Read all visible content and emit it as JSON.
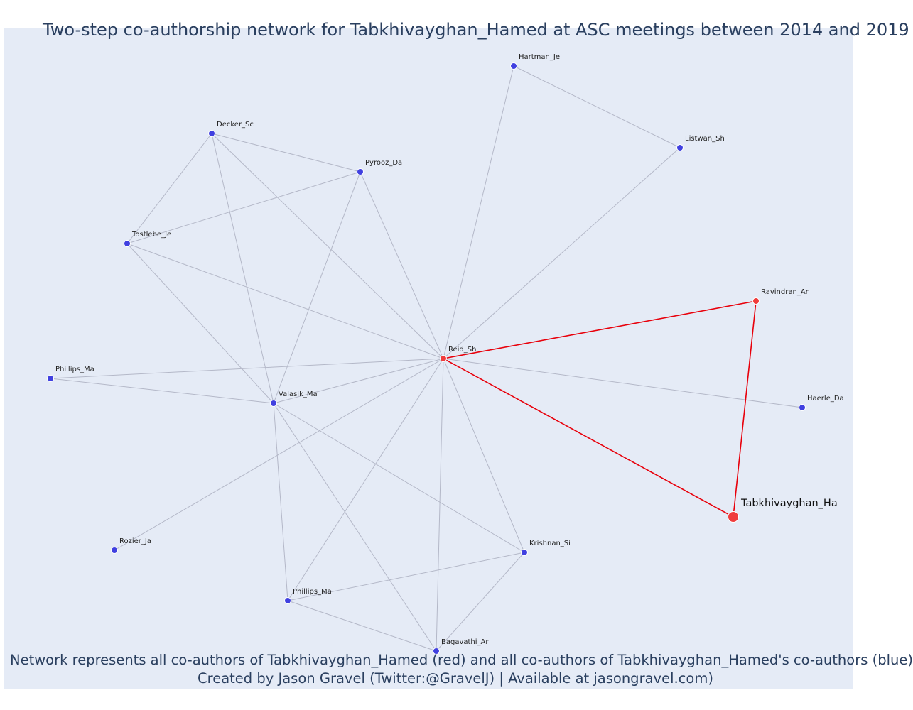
{
  "title": "Two-step co-authorship network for Tabkhivayghan_Hamed at ASC meetings between 2014 and 2019",
  "caption_line1": "Network represents all co-authors of Tabkhivayghan_Hamed (red) and all co-authors of Tabkhivayghan_Hamed's co-authors (blue)",
  "caption_line2": "Created by Jason Gravel (Twitter:@GravelJ) | Available at jasongravel.com)",
  "colors": {
    "background": "#e5ebf6",
    "direct": "#f03c3c",
    "indirect": "#4040e0",
    "edge_direct": "#e8000b",
    "edge_indirect": "#b4b8c8"
  },
  "nodes": [
    {
      "id": "hartman",
      "label": "Hartman_Je",
      "group": "indirect"
    },
    {
      "id": "listwan",
      "label": "Listwan_Sh",
      "group": "indirect"
    },
    {
      "id": "decker",
      "label": "Decker_Sc",
      "group": "indirect"
    },
    {
      "id": "pyrooz",
      "label": "Pyrooz_Da",
      "group": "indirect"
    },
    {
      "id": "tostlebe",
      "label": "Tostlebe_Je",
      "group": "indirect"
    },
    {
      "id": "ravindran",
      "label": "Ravindran_Ar",
      "group": "direct"
    },
    {
      "id": "reid",
      "label": "Reid_Sh",
      "group": "direct"
    },
    {
      "id": "phillips1",
      "label": "Phillips_Ma",
      "group": "indirect"
    },
    {
      "id": "valasik",
      "label": "Valasik_Ma",
      "group": "indirect"
    },
    {
      "id": "haerle",
      "label": "Haerle_Da",
      "group": "indirect"
    },
    {
      "id": "tabkhi",
      "label": "Tabkhivayghan_Ha",
      "group": "focus"
    },
    {
      "id": "rozier",
      "label": "Rozier_Ja",
      "group": "indirect"
    },
    {
      "id": "krishnan",
      "label": "Krishnan_Si",
      "group": "indirect"
    },
    {
      "id": "phillips2",
      "label": "Phillips_Ma",
      "group": "indirect"
    },
    {
      "id": "bagavathi",
      "label": "Bagavathi_Ar",
      "group": "indirect"
    }
  ],
  "edges": [
    {
      "source": "tabkhi",
      "target": "reid",
      "type": "direct"
    },
    {
      "source": "tabkhi",
      "target": "ravindran",
      "type": "direct"
    },
    {
      "source": "reid",
      "target": "ravindran",
      "type": "direct"
    },
    {
      "source": "hartman",
      "target": "listwan",
      "type": "indirect"
    },
    {
      "source": "hartman",
      "target": "reid",
      "type": "indirect"
    },
    {
      "source": "listwan",
      "target": "reid",
      "type": "indirect"
    },
    {
      "source": "decker",
      "target": "pyrooz",
      "type": "indirect"
    },
    {
      "source": "decker",
      "target": "tostlebe",
      "type": "indirect"
    },
    {
      "source": "decker",
      "target": "valasik",
      "type": "indirect"
    },
    {
      "source": "decker",
      "target": "reid",
      "type": "indirect"
    },
    {
      "source": "pyrooz",
      "target": "tostlebe",
      "type": "indirect"
    },
    {
      "source": "pyrooz",
      "target": "valasik",
      "type": "indirect"
    },
    {
      "source": "pyrooz",
      "target": "reid",
      "type": "indirect"
    },
    {
      "source": "tostlebe",
      "target": "reid",
      "type": "indirect"
    },
    {
      "source": "tostlebe",
      "target": "valasik",
      "type": "indirect"
    },
    {
      "source": "phillips1",
      "target": "reid",
      "type": "indirect"
    },
    {
      "source": "phillips1",
      "target": "valasik",
      "type": "indirect"
    },
    {
      "source": "valasik",
      "target": "reid",
      "type": "indirect"
    },
    {
      "source": "valasik",
      "target": "krishnan",
      "type": "indirect"
    },
    {
      "source": "valasik",
      "target": "phillips2",
      "type": "indirect"
    },
    {
      "source": "valasik",
      "target": "bagavathi",
      "type": "indirect"
    },
    {
      "source": "reid",
      "target": "haerle",
      "type": "indirect"
    },
    {
      "source": "reid",
      "target": "rozier",
      "type": "indirect"
    },
    {
      "source": "reid",
      "target": "krishnan",
      "type": "indirect"
    },
    {
      "source": "reid",
      "target": "phillips2",
      "type": "indirect"
    },
    {
      "source": "reid",
      "target": "bagavathi",
      "type": "indirect"
    },
    {
      "source": "krishnan",
      "target": "phillips2",
      "type": "indirect"
    },
    {
      "source": "krishnan",
      "target": "bagavathi",
      "type": "indirect"
    },
    {
      "source": "phillips2",
      "target": "bagavathi",
      "type": "indirect"
    }
  ]
}
